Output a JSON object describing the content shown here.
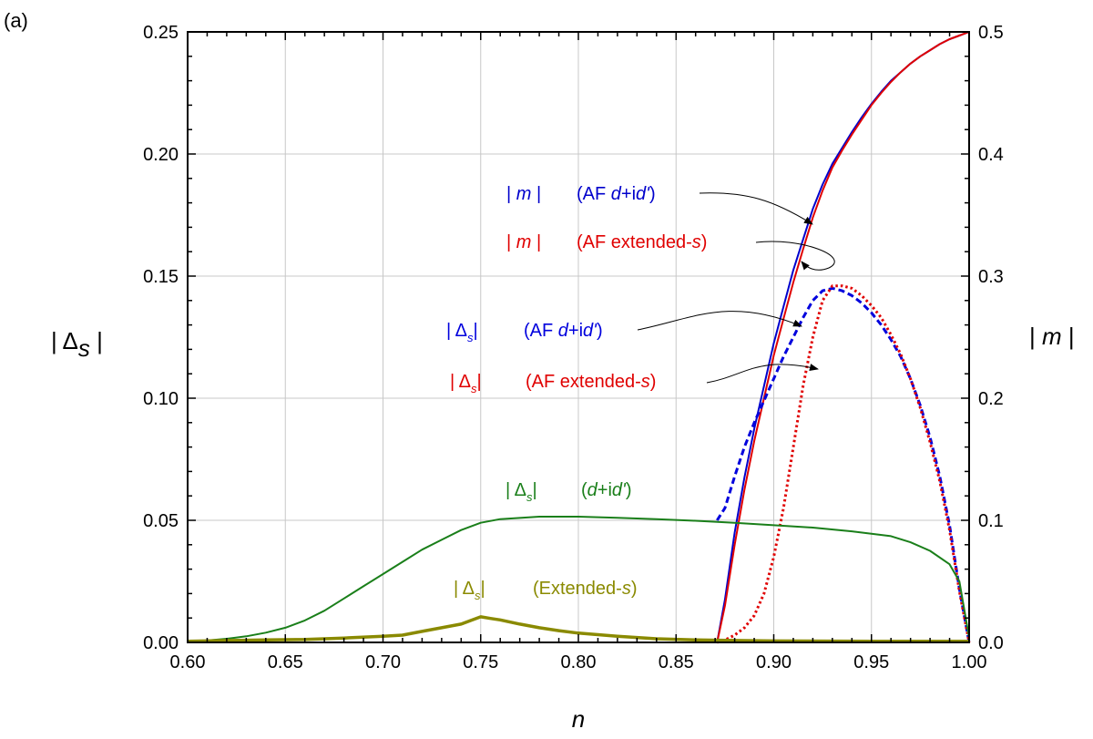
{
  "chart_data": {
    "type": "line",
    "panel_label": "(a)",
    "xlabel": "n",
    "ylabel_left": "| Δ_s |",
    "ylabel_right": "| m |",
    "xlim": [
      0.6,
      1.0
    ],
    "ylim_left": [
      0.0,
      0.25
    ],
    "ylim_right": [
      0.0,
      0.5
    ],
    "grid": true,
    "x_ticks": [
      "0.60",
      "0.65",
      "0.70",
      "0.75",
      "0.80",
      "0.85",
      "0.90",
      "0.95",
      "1.00"
    ],
    "y_left_ticks": [
      "0.00",
      "0.05",
      "0.10",
      "0.15",
      "0.20",
      "0.25"
    ],
    "y_right_ticks": [
      "0.0",
      "0.1",
      "0.2",
      "0.3",
      "0.4",
      "0.5"
    ],
    "colors": {
      "m_dd": "#0000cc",
      "m_ext": "#e00000",
      "delta_dd_af": "#0000dd",
      "delta_ext_af": "#e00000",
      "delta_dd": "#1a7f1a",
      "delta_ext": "#8a8a00"
    },
    "series": [
      {
        "id": "m_dd",
        "axis": "right",
        "style": "solid",
        "x": [
          0.871,
          0.875,
          0.88,
          0.885,
          0.89,
          0.895,
          0.9,
          0.905,
          0.91,
          0.915,
          0.92,
          0.925,
          0.93,
          0.935,
          0.94,
          0.945,
          0.95,
          0.955,
          0.96,
          0.965,
          0.97,
          0.975,
          0.98,
          0.985,
          0.99,
          0.995,
          1.0
        ],
        "y": [
          0.0,
          0.035,
          0.09,
          0.135,
          0.175,
          0.21,
          0.245,
          0.275,
          0.305,
          0.33,
          0.355,
          0.375,
          0.392,
          0.405,
          0.418,
          0.43,
          0.441,
          0.451,
          0.46,
          0.467,
          0.474,
          0.48,
          0.485,
          0.49,
          0.494,
          0.497,
          0.5
        ]
      },
      {
        "id": "m_ext",
        "axis": "right",
        "style": "solid",
        "x": [
          0.871,
          0.875,
          0.88,
          0.885,
          0.89,
          0.895,
          0.9,
          0.905,
          0.91,
          0.915,
          0.92,
          0.925,
          0.93,
          0.935,
          0.94,
          0.945,
          0.95,
          0.955,
          0.96,
          0.965,
          0.97,
          0.975,
          0.98,
          0.985,
          0.99,
          0.995,
          1.0
        ],
        "y": [
          0.0,
          0.03,
          0.08,
          0.125,
          0.165,
          0.2,
          0.235,
          0.265,
          0.295,
          0.322,
          0.348,
          0.37,
          0.389,
          0.403,
          0.416,
          0.428,
          0.44,
          0.45,
          0.459,
          0.467,
          0.474,
          0.48,
          0.485,
          0.49,
          0.494,
          0.497,
          0.5
        ]
      },
      {
        "id": "delta_dd_af",
        "axis": "left",
        "style": "dashed",
        "x": [
          0.871,
          0.875,
          0.88,
          0.885,
          0.89,
          0.895,
          0.9,
          0.905,
          0.91,
          0.915,
          0.92,
          0.925,
          0.93,
          0.935,
          0.94,
          0.945,
          0.95,
          0.955,
          0.96,
          0.965,
          0.97,
          0.975,
          0.98,
          0.985,
          0.99,
          0.995,
          1.0
        ],
        "y": [
          0.05,
          0.055,
          0.068,
          0.08,
          0.09,
          0.099,
          0.108,
          0.117,
          0.125,
          0.133,
          0.14,
          0.144,
          0.145,
          0.144,
          0.142,
          0.139,
          0.135,
          0.13,
          0.124,
          0.117,
          0.108,
          0.097,
          0.084,
          0.068,
          0.048,
          0.022,
          0.0
        ]
      },
      {
        "id": "delta_ext_af",
        "axis": "left",
        "style": "dotted",
        "x": [
          0.871,
          0.875,
          0.88,
          0.885,
          0.89,
          0.895,
          0.9,
          0.905,
          0.91,
          0.915,
          0.92,
          0.925,
          0.93,
          0.935,
          0.94,
          0.945,
          0.95,
          0.955,
          0.96,
          0.965,
          0.97,
          0.975,
          0.98,
          0.985,
          0.99,
          0.995,
          1.0
        ],
        "y": [
          0.0,
          0.001,
          0.003,
          0.006,
          0.011,
          0.02,
          0.035,
          0.055,
          0.08,
          0.105,
          0.125,
          0.14,
          0.146,
          0.146,
          0.145,
          0.142,
          0.138,
          0.133,
          0.126,
          0.118,
          0.108,
          0.096,
          0.082,
          0.066,
          0.046,
          0.021,
          0.0
        ]
      },
      {
        "id": "delta_dd",
        "axis": "left",
        "style": "solid",
        "x": [
          0.6,
          0.61,
          0.62,
          0.63,
          0.64,
          0.65,
          0.66,
          0.67,
          0.68,
          0.69,
          0.7,
          0.71,
          0.72,
          0.73,
          0.74,
          0.75,
          0.76,
          0.78,
          0.8,
          0.82,
          0.84,
          0.86,
          0.88,
          0.9,
          0.92,
          0.94,
          0.96,
          0.97,
          0.98,
          0.99,
          0.995,
          1.0
        ],
        "y": [
          0.0005,
          0.0008,
          0.0015,
          0.0025,
          0.004,
          0.006,
          0.009,
          0.013,
          0.018,
          0.023,
          0.028,
          0.033,
          0.038,
          0.042,
          0.046,
          0.049,
          0.0505,
          0.0515,
          0.0515,
          0.051,
          0.0505,
          0.0498,
          0.049,
          0.048,
          0.047,
          0.0455,
          0.0435,
          0.041,
          0.0375,
          0.032,
          0.025,
          0.002
        ]
      },
      {
        "id": "delta_ext",
        "axis": "left",
        "style": "solid",
        "x": [
          0.6,
          0.62,
          0.64,
          0.66,
          0.68,
          0.7,
          0.71,
          0.72,
          0.73,
          0.74,
          0.745,
          0.75,
          0.755,
          0.76,
          0.77,
          0.78,
          0.79,
          0.8,
          0.82,
          0.84,
          0.86,
          0.88,
          0.9,
          0.95,
          1.0
        ],
        "y": [
          0.0005,
          0.0008,
          0.001,
          0.0012,
          0.0018,
          0.0025,
          0.003,
          0.0045,
          0.006,
          0.0075,
          0.009,
          0.0105,
          0.0098,
          0.0092,
          0.0075,
          0.006,
          0.0048,
          0.0038,
          0.0025,
          0.0015,
          0.001,
          0.0008,
          0.0006,
          0.0005,
          0.0005
        ]
      }
    ],
    "annotations": [
      {
        "id": "ann_m_dd",
        "label": "| m |",
        "label_italic": "m",
        "desc_parts": [
          "(AF ",
          "d",
          "+i",
          "d'",
          ")"
        ],
        "color": "#0000cc"
      },
      {
        "id": "ann_m_ext",
        "label": "| m |",
        "label_italic": "m",
        "desc_parts": [
          "(AF extended-",
          "s",
          ")"
        ],
        "color": "#e00000"
      },
      {
        "id": "ann_delta_dd_af",
        "label": "| Δ_s |",
        "desc_parts": [
          "(AF ",
          "d",
          "+i",
          "d'",
          ")"
        ],
        "color": "#0000dd"
      },
      {
        "id": "ann_delta_ext_af",
        "label": "| Δ_s |",
        "desc_parts": [
          "(AF extended-",
          "s",
          ")"
        ],
        "color": "#e00000"
      },
      {
        "id": "ann_delta_dd",
        "label": "| Δ_s |",
        "desc_parts": [
          "(",
          "d",
          "+i",
          "d'",
          ")"
        ],
        "color": "#1a7f1a"
      },
      {
        "id": "ann_delta_ext",
        "label": "| Δ_s |",
        "desc_parts": [
          "(Extended-",
          "s",
          ")"
        ],
        "color": "#8a8a00"
      }
    ]
  }
}
